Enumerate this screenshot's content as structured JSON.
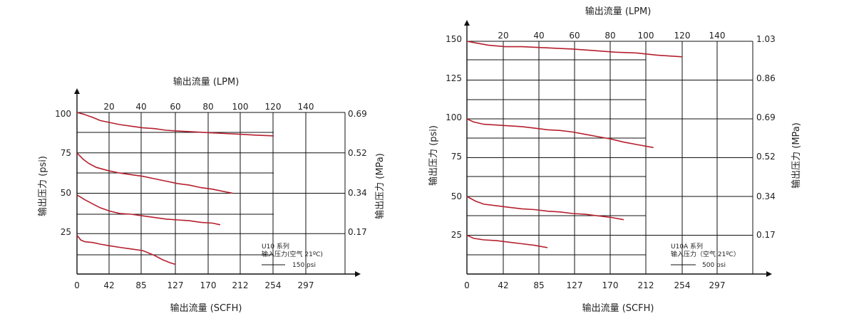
{
  "chart_data": [
    {
      "type": "line",
      "top_axis_title": "输出流量 (LPM)",
      "bottom_axis_title": "输出流量 (SCFH)",
      "left_axis_title": "输出压力 (psi)",
      "right_axis_title": "输出压力 (MPa)",
      "top_ticks": [
        "20",
        "40",
        "60",
        "80",
        "100",
        "120",
        "140"
      ],
      "bottom_ticks": [
        "0",
        "42",
        "85",
        "127",
        "170",
        "212",
        "254",
        "297"
      ],
      "left_ticks": [
        "100",
        "75",
        "50",
        "25"
      ],
      "right_ticks": [
        "0.69",
        "0.52",
        "0.34",
        "0.17"
      ],
      "xlim": [
        0,
        297
      ],
      "ylim": [
        0,
        100
      ],
      "legend_series": "U10 系列",
      "legend_condition": "输入压力(空气 21ºC)",
      "legend_line_label": "150 psi",
      "series": [
        {
          "x": [
            0,
            8,
            20,
            30,
            40,
            55,
            70,
            85,
            100,
            115,
            130,
            150,
            170,
            190,
            210,
            230,
            254
          ],
          "y": [
            100,
            99,
            97,
            95,
            94,
            92.5,
            91.5,
            90.5,
            90,
            89,
            88.5,
            88,
            87.5,
            87,
            86.5,
            86,
            85.5
          ]
        },
        {
          "x": [
            0,
            8,
            15,
            25,
            40,
            55,
            70,
            85,
            100,
            115,
            130,
            145,
            160,
            175,
            190,
            201
          ],
          "y": [
            75,
            71,
            68.5,
            66,
            64,
            62.5,
            61.5,
            60.5,
            59,
            57.5,
            56,
            55,
            53.5,
            52.5,
            51,
            50
          ]
        },
        {
          "x": [
            0,
            10,
            20,
            30,
            42,
            55,
            70,
            85,
            100,
            115,
            130,
            145,
            160,
            175,
            185
          ],
          "y": [
            49,
            46,
            43.5,
            41,
            39,
            37.5,
            37,
            36,
            35,
            34,
            33.5,
            33,
            32,
            31.5,
            30.5
          ]
        },
        {
          "x": [
            0,
            5,
            10,
            20,
            30,
            42,
            55,
            70,
            85,
            100,
            110,
            120,
            127
          ],
          "y": [
            24,
            21,
            20,
            19.5,
            18.5,
            17.5,
            16.5,
            15.5,
            14.5,
            11.5,
            9,
            7,
            6
          ]
        }
      ]
    },
    {
      "type": "line",
      "top_axis_title": "输出流量 (LPM)",
      "bottom_axis_title": "输出流量 (SCFH)",
      "left_axis_title": "输出压力 (psi)",
      "right_axis_title": "输出压力 (MPa)",
      "top_ticks": [
        "20",
        "40",
        "60",
        "80",
        "100",
        "120",
        "140"
      ],
      "bottom_ticks": [
        "0",
        "42",
        "85",
        "127",
        "170",
        "212",
        "254",
        "297"
      ],
      "left_ticks": [
        "150",
        "125",
        "100",
        "75",
        "50",
        "25"
      ],
      "right_ticks": [
        "1.03",
        "0.86",
        "0.69",
        "0.52",
        "0.34",
        "0.17"
      ],
      "xlim": [
        0,
        297
      ],
      "ylim": [
        0,
        150
      ],
      "legend_series": "U10A 系列",
      "legend_condition": "输入压力（空气 21ºC）",
      "legend_line_label": "500 psi",
      "series": [
        {
          "x": [
            0,
            10,
            25,
            45,
            65,
            85,
            105,
            125,
            150,
            175,
            200,
            225,
            254
          ],
          "y": [
            150,
            149,
            147.5,
            146.5,
            146.5,
            146,
            145.5,
            145,
            144,
            143,
            142.5,
            141,
            140
          ]
        },
        {
          "x": [
            0,
            8,
            20,
            35,
            50,
            65,
            80,
            95,
            110,
            125,
            140,
            155,
            170,
            185,
            200,
            220
          ],
          "y": [
            100,
            98,
            96.5,
            96,
            95.5,
            95,
            94,
            93,
            92.5,
            91.5,
            90,
            88.5,
            87,
            85,
            83.5,
            81.5
          ]
        },
        {
          "x": [
            0,
            10,
            20,
            35,
            50,
            65,
            80,
            95,
            110,
            125,
            140,
            155,
            170,
            185
          ],
          "y": [
            50,
            47,
            45,
            44,
            43,
            42,
            41.5,
            40.5,
            40,
            39,
            38.5,
            37.5,
            36.5,
            35
          ]
        },
        {
          "x": [
            0,
            8,
            20,
            35,
            50,
            65,
            80,
            95
          ],
          "y": [
            25,
            23,
            22,
            21.5,
            20.5,
            19.5,
            18.5,
            17
          ]
        }
      ]
    }
  ]
}
